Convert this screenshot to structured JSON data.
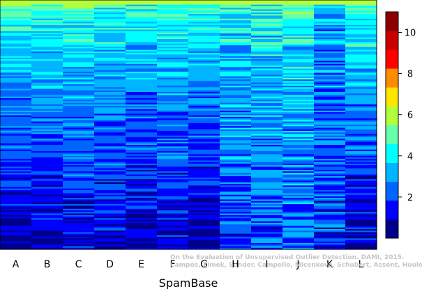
{
  "chart_data": {
    "type": "heatmap",
    "xlabel": "SpamBase",
    "ylabel": "",
    "columns": [
      "A",
      "B",
      "C",
      "D",
      "E",
      "F",
      "G",
      "H",
      "I",
      "J",
      "K",
      "L"
    ],
    "rows_approx": 160,
    "column_profiles": [
      {
        "column": "A",
        "top_value": 5.0,
        "bottom_value": 0.6,
        "noise": 0.9
      },
      {
        "column": "B",
        "top_value": 5.0,
        "bottom_value": 0.7,
        "noise": 0.9
      },
      {
        "column": "C",
        "top_value": 5.2,
        "bottom_value": 1.0,
        "noise": 1.0
      },
      {
        "column": "D",
        "top_value": 4.8,
        "bottom_value": 0.9,
        "noise": 1.0
      },
      {
        "column": "E",
        "top_value": 4.6,
        "bottom_value": 0.9,
        "noise": 1.0
      },
      {
        "column": "F",
        "top_value": 5.0,
        "bottom_value": 0.8,
        "noise": 1.0
      },
      {
        "column": "G",
        "top_value": 4.9,
        "bottom_value": 0.5,
        "noise": 0.9
      },
      {
        "column": "H",
        "top_value": 4.3,
        "bottom_value": 2.0,
        "noise": 1.3
      },
      {
        "column": "I",
        "top_value": 4.4,
        "bottom_value": 2.0,
        "noise": 1.3
      },
      {
        "column": "J",
        "top_value": 4.6,
        "bottom_value": 2.2,
        "noise": 1.3
      },
      {
        "column": "K",
        "top_value": 3.3,
        "bottom_value": 1.8,
        "noise": 1.2
      },
      {
        "column": "L",
        "top_value": 5.0,
        "bottom_value": 0.8,
        "noise": 1.0
      }
    ],
    "colorbar": {
      "min": 0,
      "max": 11,
      "ticks": [
        2,
        4,
        6,
        8,
        10
      ],
      "tick_labels": [
        "2",
        "4",
        "6",
        "8",
        "10"
      ],
      "colors": [
        "#00008b",
        "#0000ff",
        "#0064ff",
        "#00b4ff",
        "#00ffff",
        "#66ffaa",
        "#b4ff3c",
        "#ffe600",
        "#ff8c00",
        "#ff0000",
        "#c80000",
        "#8b0000"
      ]
    }
  },
  "watermark": {
    "line1": "On the Evaluation of Unsupervised Outlier Detection. DAMI, 2015.",
    "line2": "Campos, Zimek, Sander, Campello, Micenkova, Schubert, Assent, Houle"
  }
}
